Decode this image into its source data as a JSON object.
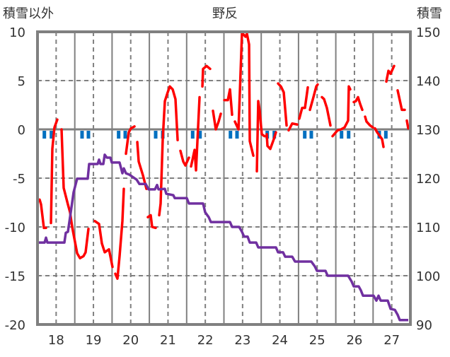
{
  "chart_data": {
    "type": "line",
    "title": "野反",
    "ylabel_left": "積雪以外",
    "ylabel_right": "積雪",
    "xlim": [
      17.5,
      27.5
    ],
    "ylim_left": [
      -20,
      10
    ],
    "ylim_right": [
      90,
      150
    ],
    "yticks_left": [
      "10",
      "5",
      "0",
      "-5",
      "-10",
      "-15",
      "-20"
    ],
    "yticks_right": [
      "150",
      "140",
      "130",
      "120",
      "110",
      "100",
      "90"
    ],
    "xticks": [
      "18",
      "19",
      "20",
      "21",
      "22",
      "23",
      "24",
      "25",
      "26",
      "27"
    ],
    "grid": true,
    "colors": {
      "temperature": "#ff0000",
      "snow_depth": "#7030a0",
      "precip": "#0070c0",
      "frame": "#808080"
    },
    "series": [
      {
        "name": "temperature",
        "axis": "left",
        "segments": [
          [
            [
              17.557,
              -7.2
            ],
            [
              17.595,
              -7.7
            ],
            [
              17.671,
              -10.1
            ],
            [
              17.728,
              -10.1
            ]
          ],
          [
            [
              17.861,
              -9.6
            ],
            [
              17.898,
              -2.0
            ],
            [
              17.955,
              0.2
            ],
            [
              18.031,
              1.0
            ]
          ],
          [
            [
              18.145,
              0
            ],
            [
              18.202,
              -6
            ],
            [
              18.316,
              -7.7
            ],
            [
              18.373,
              -8.5
            ],
            [
              18.43,
              -10
            ],
            [
              18.563,
              -12.7
            ],
            [
              18.639,
              -13.2
            ],
            [
              18.733,
              -13
            ],
            [
              18.79,
              -12.6
            ],
            [
              18.866,
              -10.2
            ]
          ],
          [
            [
              19.037,
              -9.4
            ],
            [
              19.151,
              -9.7
            ],
            [
              19.227,
              -11.7
            ],
            [
              19.303,
              -12.6
            ],
            [
              19.417,
              -12.3
            ],
            [
              19.511,
              -14.1
            ]
          ],
          [
            [
              19.587,
              -14.8
            ],
            [
              19.644,
              -15.3
            ],
            [
              19.701,
              -13
            ],
            [
              19.777,
              -9.4
            ],
            [
              19.815,
              -6.1
            ]
          ],
          [
            [
              19.872,
              -2.5
            ],
            [
              19.948,
              -0.3
            ],
            [
              20.005,
              0.1
            ],
            [
              20.1,
              0.3
            ]
          ],
          [
            [
              20.176,
              -1.3
            ],
            [
              20.214,
              -3.3
            ],
            [
              20.327,
              -4.7
            ],
            [
              20.422,
              -6.1
            ]
          ],
          [
            [
              20.46,
              -9
            ],
            [
              20.536,
              -8.8
            ],
            [
              20.574,
              -10
            ],
            [
              20.669,
              -10.1
            ]
          ],
          [
            [
              20.764,
              -8.8
            ],
            [
              20.802,
              -7.6
            ],
            [
              20.859,
              -1
            ],
            [
              20.916,
              2.9
            ],
            [
              20.992,
              3.8
            ],
            [
              21.049,
              4.4
            ],
            [
              21.125,
              4.1
            ],
            [
              21.2,
              3.1
            ],
            [
              21.258,
              -1.1
            ]
          ],
          [
            [
              21.333,
              -2.2
            ],
            [
              21.409,
              -3.3
            ],
            [
              21.466,
              -3.7
            ],
            [
              21.561,
              -2.9
            ]
          ],
          [
            [
              21.618,
              -3.8
            ],
            [
              21.713,
              -2.1
            ],
            [
              21.751,
              -4.2
            ],
            [
              21.846,
              3.3
            ]
          ],
          [
            [
              21.922,
              4.4
            ],
            [
              21.94,
              6.2
            ],
            [
              22.035,
              6.5
            ],
            [
              22.13,
              6.2
            ]
          ],
          [
            [
              22.206,
              1.9
            ],
            [
              22.282,
              0
            ],
            [
              22.358,
              0.8
            ],
            [
              22.415,
              1.6
            ]
          ],
          [
            [
              22.51,
              3.0
            ],
            [
              22.605,
              3.0
            ],
            [
              22.662,
              4.1
            ],
            [
              22.718,
              1.5
            ]
          ],
          [
            [
              22.794,
              0.8
            ],
            [
              22.89,
              0
            ],
            [
              22.927,
              3.8
            ],
            [
              22.984,
              9.9
            ],
            [
              23.079,
              9.5
            ],
            [
              23.117,
              9.8
            ],
            [
              23.174,
              8.7
            ],
            [
              23.193,
              -1.2
            ],
            [
              23.288,
              -2.7
            ]
          ],
          [
            [
              23.383,
              -4.3
            ],
            [
              23.42,
              2.9
            ],
            [
              23.458,
              1.9
            ],
            [
              23.515,
              -0.5
            ],
            [
              23.591,
              -0.7
            ]
          ],
          [
            [
              23.648,
              -0.5
            ],
            [
              23.667,
              -1.7
            ],
            [
              23.743,
              -2
            ],
            [
              23.838,
              -1
            ],
            [
              23.895,
              -0.3
            ]
          ],
          [
            [
              23.952,
              4.7
            ],
            [
              24.028,
              4.4
            ],
            [
              24.104,
              3.8
            ],
            [
              24.18,
              0.4
            ]
          ],
          [
            [
              24.236,
              -0.1
            ],
            [
              24.331,
              0.6
            ],
            [
              24.464,
              0.5
            ]
          ],
          [
            [
              24.521,
              1.1
            ],
            [
              24.597,
              2.2
            ],
            [
              24.673,
              2.2
            ],
            [
              24.749,
              4.3
            ]
          ],
          [
            [
              24.806,
              2
            ],
            [
              24.9,
              3.3
            ],
            [
              24.976,
              4.4
            ],
            [
              25.014,
              4.6
            ]
          ],
          [
            [
              25.128,
              3.3
            ],
            [
              25.185,
              3.1
            ],
            [
              25.261,
              2.2
            ],
            [
              25.356,
              0.4
            ]
          ],
          [
            [
              25.413,
              -0.7
            ],
            [
              25.546,
              -0.1
            ],
            [
              25.64,
              0
            ],
            [
              25.735,
              0.2
            ],
            [
              25.83,
              0.9
            ],
            [
              25.849,
              4.4
            ],
            [
              25.887,
              4.1
            ]
          ],
          [
            [
              25.982,
              2.8
            ],
            [
              26.039,
              2.9
            ],
            [
              26.096,
              3.3
            ],
            [
              26.153,
              2.6
            ],
            [
              26.21,
              2.0
            ]
          ],
          [
            [
              26.286,
              1.3
            ],
            [
              26.324,
              0.8
            ],
            [
              26.418,
              0.4
            ],
            [
              26.494,
              0.2
            ]
          ],
          [
            [
              26.551,
              0.1
            ],
            [
              26.608,
              -0.3
            ],
            [
              26.684,
              -0.7
            ],
            [
              26.741,
              -1
            ],
            [
              26.779,
              -1.8
            ]
          ],
          [
            [
              26.855,
              4.9
            ],
            [
              26.912,
              6
            ],
            [
              26.969,
              5.7
            ],
            [
              27.063,
              6.5
            ]
          ],
          [
            [
              27.158,
              4
            ],
            [
              27.272,
              2
            ],
            [
              27.348,
              2
            ]
          ],
          [
            [
              27.405,
              0.9
            ],
            [
              27.443,
              0.1
            ]
          ]
        ]
      },
      {
        "name": "snow_depth",
        "axis": "right",
        "points": [
          [
            17.5,
            106.8
          ],
          [
            17.69,
            106.8
          ],
          [
            17.728,
            107.8
          ],
          [
            17.766,
            106.8
          ],
          [
            18.221,
            106.8
          ],
          [
            18.259,
            108.8
          ],
          [
            18.316,
            109.0
          ],
          [
            18.392,
            113.0
          ],
          [
            18.468,
            117.1
          ],
          [
            18.563,
            119.9
          ],
          [
            18.847,
            119.9
          ],
          [
            18.885,
            122.9
          ],
          [
            19.113,
            122.9
          ],
          [
            19.151,
            123.8
          ],
          [
            19.189,
            122.9
          ],
          [
            19.265,
            122.9
          ],
          [
            19.303,
            124.8
          ],
          [
            19.36,
            124.2
          ],
          [
            19.454,
            124.2
          ],
          [
            19.492,
            123.2
          ],
          [
            19.701,
            123.2
          ],
          [
            19.777,
            121.0
          ],
          [
            19.815,
            122.0
          ],
          [
            19.872,
            121.0
          ],
          [
            19.967,
            120.7
          ],
          [
            20.157,
            119.7
          ],
          [
            20.233,
            118.8
          ],
          [
            20.403,
            118.8
          ],
          [
            20.479,
            117.7
          ],
          [
            20.65,
            117.7
          ],
          [
            20.707,
            118.6
          ],
          [
            20.745,
            117.7
          ],
          [
            20.916,
            117.8
          ],
          [
            20.954,
            116.8
          ],
          [
            21.143,
            116.5
          ],
          [
            21.181,
            115.9
          ],
          [
            21.504,
            115.9
          ],
          [
            21.561,
            114.8
          ],
          [
            21.94,
            114.8
          ],
          [
            21.997,
            113.0
          ],
          [
            22.092,
            112.0
          ],
          [
            22.149,
            111.0
          ],
          [
            22.662,
            111.0
          ],
          [
            22.718,
            110.0
          ],
          [
            22.908,
            110.0
          ],
          [
            22.984,
            109.0
          ],
          [
            23.041,
            108.0
          ],
          [
            23.136,
            108.0
          ],
          [
            23.193,
            106.8
          ],
          [
            23.364,
            106.8
          ],
          [
            23.42,
            105.8
          ],
          [
            23.895,
            105.8
          ],
          [
            23.952,
            104.8
          ],
          [
            24.085,
            104.8
          ],
          [
            24.142,
            103.9
          ],
          [
            24.331,
            103.9
          ],
          [
            24.407,
            102.9
          ],
          [
            24.843,
            102.9
          ],
          [
            24.938,
            101.9
          ],
          [
            24.995,
            101.0
          ],
          [
            25.223,
            101.0
          ],
          [
            25.28,
            100.0
          ],
          [
            25.83,
            100.0
          ],
          [
            25.925,
            98.8
          ],
          [
            25.982,
            97.8
          ],
          [
            26.115,
            97.8
          ],
          [
            26.172,
            97.0
          ],
          [
            26.229,
            95.9
          ],
          [
            26.513,
            95.9
          ],
          [
            26.589,
            94.9
          ],
          [
            26.646,
            95.9
          ],
          [
            26.703,
            94.9
          ],
          [
            26.893,
            94.9
          ],
          [
            26.969,
            93.2
          ],
          [
            27.083,
            93.0
          ],
          [
            27.158,
            92.0
          ],
          [
            27.215,
            90.9
          ],
          [
            27.443,
            90.9
          ]
        ]
      },
      {
        "name": "precip",
        "axis": "left",
        "type": "bar",
        "points": [
          [
            17.684,
            0.8
          ],
          [
            17.874,
            0.8
          ],
          [
            18.695,
            0.8
          ],
          [
            18.866,
            0.8
          ],
          [
            19.676,
            0.8
          ],
          [
            19.853,
            0.8
          ],
          [
            20.669,
            0.8
          ],
          [
            20.859,
            0.8
          ],
          [
            21.661,
            0.8
          ],
          [
            21.859,
            0.8
          ],
          [
            22.675,
            0.8
          ],
          [
            22.851,
            0.8
          ],
          [
            23.661,
            0.8
          ],
          [
            23.851,
            0.8
          ],
          [
            24.667,
            0.8
          ],
          [
            24.843,
            0.8
          ],
          [
            25.654,
            0.8
          ],
          [
            25.844,
            0.8
          ],
          [
            26.665,
            0.8
          ],
          [
            26.842,
            0.8
          ]
        ]
      }
    ]
  }
}
